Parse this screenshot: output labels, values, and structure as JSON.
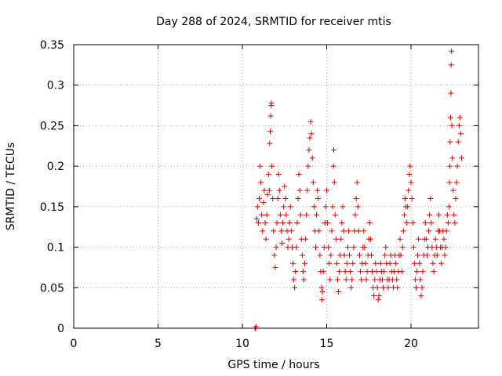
{
  "chart_data": {
    "type": "scatter",
    "title": "Day 288 of 2024, SRMTID for receiver mtis",
    "xlabel": "GPS time / hours",
    "ylabel": "SRMTID / TECUs",
    "xlim": [
      0,
      24
    ],
    "ylim": [
      0,
      0.35
    ],
    "xticks": [
      "0",
      "5",
      "10",
      "15",
      "20"
    ],
    "yticks": [
      "0",
      "0.05",
      "0.1",
      "0.15",
      "0.2",
      "0.25",
      "0.3",
      "0.35"
    ],
    "grid": true,
    "marker": "+",
    "series": [
      {
        "color": "#e00000",
        "points": [
          [
            10.75,
            0.0
          ],
          [
            10.77,
            0.0
          ],
          [
            10.79,
            0.0
          ],
          [
            10.81,
            0.002
          ],
          [
            10.85,
            0.135
          ],
          [
            10.9,
            0.15
          ],
          [
            10.95,
            0.13
          ],
          [
            11.0,
            0.16
          ],
          [
            11.05,
            0.2
          ],
          [
            11.1,
            0.18
          ],
          [
            11.15,
            0.14
          ],
          [
            11.2,
            0.12
          ],
          [
            11.25,
            0.155
          ],
          [
            11.3,
            0.17
          ],
          [
            11.35,
            0.13
          ],
          [
            11.4,
            0.11
          ],
          [
            11.45,
            0.14
          ],
          [
            11.5,
            0.165
          ],
          [
            11.55,
            0.19
          ],
          [
            11.6,
            0.17
          ],
          [
            11.62,
            0.228
          ],
          [
            11.65,
            0.243
          ],
          [
            11.68,
            0.262
          ],
          [
            11.7,
            0.275
          ],
          [
            11.72,
            0.278
          ],
          [
            11.75,
            0.2
          ],
          [
            11.8,
            0.16
          ],
          [
            11.85,
            0.12
          ],
          [
            11.9,
            0.09
          ],
          [
            11.95,
            0.075
          ],
          [
            12.0,
            0.1
          ],
          [
            12.05,
            0.13
          ],
          [
            12.1,
            0.16
          ],
          [
            12.15,
            0.19
          ],
          [
            12.2,
            0.17
          ],
          [
            12.25,
            0.14
          ],
          [
            12.3,
            0.12
          ],
          [
            12.35,
            0.105
          ],
          [
            12.4,
            0.13
          ],
          [
            12.45,
            0.15
          ],
          [
            12.5,
            0.175
          ],
          [
            12.55,
            0.16
          ],
          [
            12.6,
            0.14
          ],
          [
            12.65,
            0.12
          ],
          [
            12.7,
            0.1
          ],
          [
            12.75,
            0.11
          ],
          [
            12.8,
            0.13
          ],
          [
            12.85,
            0.15
          ],
          [
            12.9,
            0.12
          ],
          [
            12.95,
            0.1
          ],
          [
            13.0,
            0.08
          ],
          [
            13.05,
            0.06
          ],
          [
            13.1,
            0.05
          ],
          [
            13.15,
            0.07
          ],
          [
            13.2,
            0.1
          ],
          [
            13.25,
            0.13
          ],
          [
            13.3,
            0.16
          ],
          [
            13.35,
            0.19
          ],
          [
            13.4,
            0.17
          ],
          [
            13.45,
            0.14
          ],
          [
            13.5,
            0.11
          ],
          [
            13.55,
            0.09
          ],
          [
            13.6,
            0.07
          ],
          [
            13.65,
            0.06
          ],
          [
            13.7,
            0.08
          ],
          [
            13.75,
            0.11
          ],
          [
            13.8,
            0.14
          ],
          [
            13.85,
            0.17
          ],
          [
            13.9,
            0.2
          ],
          [
            13.95,
            0.22
          ],
          [
            14.0,
            0.235
          ],
          [
            14.05,
            0.255
          ],
          [
            14.1,
            0.24
          ],
          [
            14.15,
            0.21
          ],
          [
            14.2,
            0.18
          ],
          [
            14.25,
            0.15
          ],
          [
            14.3,
            0.12
          ],
          [
            14.35,
            0.1
          ],
          [
            14.4,
            0.14
          ],
          [
            14.45,
            0.17
          ],
          [
            14.5,
            0.16
          ],
          [
            14.55,
            0.12
          ],
          [
            14.6,
            0.09
          ],
          [
            14.65,
            0.07
          ],
          [
            14.7,
            0.05
          ],
          [
            14.72,
            0.035
          ],
          [
            14.75,
            0.045
          ],
          [
            14.8,
            0.07
          ],
          [
            14.85,
            0.1
          ],
          [
            14.9,
            0.13
          ],
          [
            14.95,
            0.15
          ],
          [
            15.0,
            0.17
          ],
          [
            15.05,
            0.13
          ],
          [
            15.1,
            0.1
          ],
          [
            15.15,
            0.08
          ],
          [
            15.2,
            0.06
          ],
          [
            15.25,
            0.09
          ],
          [
            15.3,
            0.12
          ],
          [
            15.35,
            0.15
          ],
          [
            15.4,
            0.2
          ],
          [
            15.42,
            0.22
          ],
          [
            15.45,
            0.18
          ],
          [
            15.5,
            0.14
          ],
          [
            15.55,
            0.11
          ],
          [
            15.6,
            0.08
          ],
          [
            15.65,
            0.06
          ],
          [
            15.7,
            0.045
          ],
          [
            15.75,
            0.07
          ],
          [
            15.8,
            0.09
          ],
          [
            15.85,
            0.11
          ],
          [
            15.9,
            0.13
          ],
          [
            15.95,
            0.15
          ],
          [
            16.0,
            0.12
          ],
          [
            16.05,
            0.09
          ],
          [
            16.1,
            0.07
          ],
          [
            16.15,
            0.06
          ],
          [
            16.2,
            0.08
          ],
          [
            16.25,
            0.1
          ],
          [
            16.3,
            0.12
          ],
          [
            16.35,
            0.09
          ],
          [
            16.4,
            0.07
          ],
          [
            16.45,
            0.05
          ],
          [
            16.5,
            0.06
          ],
          [
            16.55,
            0.08
          ],
          [
            16.6,
            0.1
          ],
          [
            16.65,
            0.12
          ],
          [
            16.7,
            0.14
          ],
          [
            16.75,
            0.16
          ],
          [
            16.8,
            0.18
          ],
          [
            16.85,
            0.15
          ],
          [
            16.9,
            0.12
          ],
          [
            16.95,
            0.09
          ],
          [
            17.0,
            0.07
          ],
          [
            17.05,
            0.06
          ],
          [
            17.1,
            0.08
          ],
          [
            17.15,
            0.1
          ],
          [
            17.2,
            0.12
          ],
          [
            17.25,
            0.1
          ],
          [
            17.3,
            0.08
          ],
          [
            17.35,
            0.06
          ],
          [
            17.4,
            0.07
          ],
          [
            17.45,
            0.09
          ],
          [
            17.5,
            0.11
          ],
          [
            17.55,
            0.13
          ],
          [
            17.6,
            0.11
          ],
          [
            17.65,
            0.09
          ],
          [
            17.7,
            0.07
          ],
          [
            17.75,
            0.05
          ],
          [
            17.8,
            0.04
          ],
          [
            17.85,
            0.06
          ],
          [
            17.9,
            0.08
          ],
          [
            17.95,
            0.07
          ],
          [
            18.0,
            0.05
          ],
          [
            18.05,
            0.035
          ],
          [
            18.1,
            0.04
          ],
          [
            18.15,
            0.06
          ],
          [
            18.2,
            0.08
          ],
          [
            18.25,
            0.07
          ],
          [
            18.3,
            0.06
          ],
          [
            18.35,
            0.05
          ],
          [
            18.4,
            0.07
          ],
          [
            18.45,
            0.09
          ],
          [
            18.5,
            0.1
          ],
          [
            18.55,
            0.08
          ],
          [
            18.6,
            0.06
          ],
          [
            18.65,
            0.05
          ],
          [
            18.7,
            0.06
          ],
          [
            18.75,
            0.08
          ],
          [
            18.8,
            0.09
          ],
          [
            18.85,
            0.07
          ],
          [
            18.9,
            0.06
          ],
          [
            18.95,
            0.05
          ],
          [
            19.0,
            0.07
          ],
          [
            19.05,
            0.09
          ],
          [
            19.1,
            0.08
          ],
          [
            19.15,
            0.06
          ],
          [
            19.2,
            0.05
          ],
          [
            19.25,
            0.07
          ],
          [
            19.3,
            0.09
          ],
          [
            19.35,
            0.11
          ],
          [
            19.4,
            0.09
          ],
          [
            19.45,
            0.07
          ],
          [
            19.5,
            0.1
          ],
          [
            19.55,
            0.12
          ],
          [
            19.6,
            0.14
          ],
          [
            19.65,
            0.16
          ],
          [
            19.7,
            0.15
          ],
          [
            19.75,
            0.13
          ],
          [
            19.8,
            0.15
          ],
          [
            19.85,
            0.17
          ],
          [
            19.9,
            0.19
          ],
          [
            19.95,
            0.2
          ],
          [
            20.0,
            0.18
          ],
          [
            20.05,
            0.16
          ],
          [
            20.1,
            0.13
          ],
          [
            20.15,
            0.1
          ],
          [
            20.2,
            0.08
          ],
          [
            20.25,
            0.06
          ],
          [
            20.3,
            0.05
          ],
          [
            20.35,
            0.07
          ],
          [
            20.4,
            0.09
          ],
          [
            20.45,
            0.11
          ],
          [
            20.5,
            0.08
          ],
          [
            20.55,
            0.06
          ],
          [
            20.6,
            0.04
          ],
          [
            20.65,
            0.05
          ],
          [
            20.7,
            0.07
          ],
          [
            20.75,
            0.09
          ],
          [
            20.8,
            0.11
          ],
          [
            20.85,
            0.13
          ],
          [
            20.9,
            0.11
          ],
          [
            20.95,
            0.09
          ],
          [
            21.0,
            0.1
          ],
          [
            21.05,
            0.12
          ],
          [
            21.1,
            0.14
          ],
          [
            21.15,
            0.16
          ],
          [
            21.2,
            0.13
          ],
          [
            21.25,
            0.1
          ],
          [
            21.3,
            0.08
          ],
          [
            21.35,
            0.07
          ],
          [
            21.4,
            0.09
          ],
          [
            21.45,
            0.11
          ],
          [
            21.5,
            0.1
          ],
          [
            21.55,
            0.09
          ],
          [
            21.6,
            0.12
          ],
          [
            21.65,
            0.14
          ],
          [
            21.7,
            0.12
          ],
          [
            21.75,
            0.1
          ],
          [
            21.8,
            0.08
          ],
          [
            21.85,
            0.1
          ],
          [
            21.9,
            0.12
          ],
          [
            21.95,
            0.11
          ],
          [
            22.0,
            0.09
          ],
          [
            22.05,
            0.1
          ],
          [
            22.1,
            0.12
          ],
          [
            22.15,
            0.14
          ],
          [
            22.2,
            0.13
          ],
          [
            22.25,
            0.15
          ],
          [
            22.28,
            0.18
          ],
          [
            22.3,
            0.2
          ],
          [
            22.32,
            0.23
          ],
          [
            22.35,
            0.26
          ],
          [
            22.37,
            0.29
          ],
          [
            22.38,
            0.325
          ],
          [
            22.4,
            0.342
          ],
          [
            22.42,
            0.25
          ],
          [
            22.45,
            0.21
          ],
          [
            22.5,
            0.17
          ],
          [
            22.55,
            0.14
          ],
          [
            22.6,
            0.13
          ],
          [
            22.65,
            0.16
          ],
          [
            22.7,
            0.18
          ],
          [
            22.75,
            0.2
          ],
          [
            22.8,
            0.23
          ],
          [
            22.85,
            0.25
          ],
          [
            22.9,
            0.26
          ],
          [
            22.95,
            0.24
          ],
          [
            23.0,
            0.21
          ]
        ]
      }
    ]
  }
}
